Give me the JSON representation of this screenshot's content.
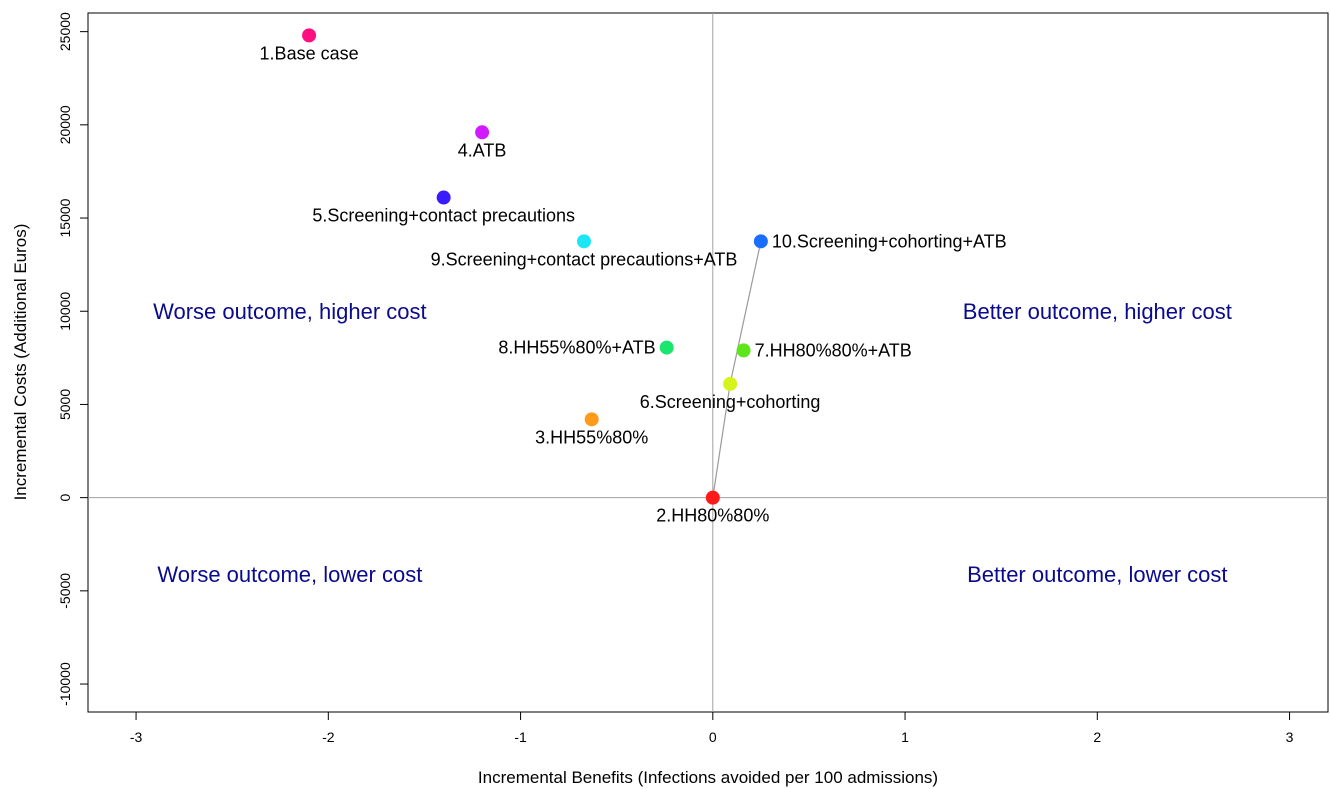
{
  "chart_data": {
    "type": "scatter",
    "xlabel": "Incremental Benefits (Infections avoided per 100 admissions)",
    "ylabel": "Incremental Costs (Additional Euros)",
    "xlim": [
      -3.25,
      3.2
    ],
    "ylim": [
      -11500,
      26000
    ],
    "x_ticks": [
      -3,
      -2,
      -1,
      0,
      1,
      2,
      3
    ],
    "y_ticks": [
      -10000,
      -5000,
      0,
      5000,
      10000,
      15000,
      20000,
      25000
    ],
    "points": [
      {
        "label": "1.Base case",
        "x": -2.1,
        "y": 24800,
        "color": "#ff0f80",
        "label_pos": "below"
      },
      {
        "label": "2.HH80%80%",
        "x": 0.0,
        "y": 0,
        "color": "#ff1a1a",
        "label_pos": "below"
      },
      {
        "label": "3.HH55%80%",
        "x": -0.63,
        "y": 4200,
        "color": "#ff9a1a",
        "label_pos": "below"
      },
      {
        "label": "4.ATB",
        "x": -1.2,
        "y": 19600,
        "color": "#d21aff",
        "label_pos": "below"
      },
      {
        "label": "5.Screening+contact precautions",
        "x": -1.4,
        "y": 16100,
        "color": "#3a1aff",
        "label_pos": "below"
      },
      {
        "label": "6.Screening+cohorting",
        "x": 0.09,
        "y": 6100,
        "color": "#d5f51a",
        "label_pos": "below-right"
      },
      {
        "label": "7.HH80%80%+ATB",
        "x": 0.16,
        "y": 7900,
        "color": "#5ee61a",
        "label_pos": "right"
      },
      {
        "label": "8.HH55%80%+ATB",
        "x": -0.24,
        "y": 8050,
        "color": "#1ae66e",
        "label_pos": "left"
      },
      {
        "label": "9.Screening+contact precautions+ATB",
        "x": -0.67,
        "y": 13750,
        "color": "#1ae6f5",
        "label_pos": "below"
      },
      {
        "label": "10.Screening+cohorting+ATB",
        "x": 0.25,
        "y": 13750,
        "color": "#1a6eff",
        "label_pos": "right"
      }
    ],
    "frontier": [
      [
        0.0,
        0
      ],
      [
        0.09,
        6100
      ],
      [
        0.25,
        13750
      ]
    ],
    "quadrants": [
      {
        "text": "Worse outcome, higher cost",
        "x": -2.2,
        "y": 10000
      },
      {
        "text": "Better outcome, higher cost",
        "x": 2.0,
        "y": 10000
      },
      {
        "text": "Worse outcome, lower cost",
        "x": -2.2,
        "y": -4100
      },
      {
        "text": "Better outcome, lower cost",
        "x": 2.0,
        "y": -4100
      }
    ],
    "grid": false,
    "reference_lines": {
      "x": 0,
      "y": 0
    }
  }
}
